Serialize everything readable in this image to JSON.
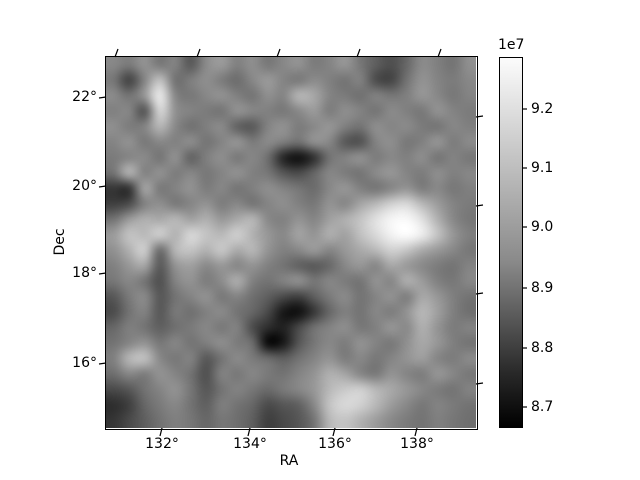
{
  "figure": {
    "background": "#ffffff",
    "text_color": "#000000"
  },
  "chart_data": {
    "type": "heatmap",
    "title": "",
    "xlabel": "RA",
    "ylabel": "Dec",
    "x_tick_labels": [
      "132°",
      "134°",
      "136°",
      "138°"
    ],
    "y_tick_labels": [
      "22°",
      "20°",
      "18°",
      "16°"
    ],
    "x_axis_range_deg": [
      130.7,
      139.4
    ],
    "y_axis_range_deg": [
      14.5,
      22.9
    ],
    "grid_on": false,
    "colorbar": {
      "exponent_label": "1e7",
      "tick_labels": [
        "9.2",
        "9.1",
        "9.0",
        "8.9",
        "8.8",
        "8.7"
      ],
      "vmin_times_1e7": 8.67,
      "vmax_times_1e7": 9.29,
      "colormap": "gray",
      "position": "right"
    },
    "values_encoding": "cell value n means pixel value (8 + n/100) x 1e7; colormap gray maps 67->black, 129->white",
    "grid": [
      [
        100,
        97,
        103,
        96,
        99,
        88,
        101,
        105,
        98,
        102,
        96,
        100,
        103,
        97,
        99,
        104,
        96,
        90,
        86,
        92,
        101,
        98,
        95,
        102
      ],
      [
        96,
        82,
        99,
        115,
        94,
        98,
        102,
        97,
        93,
        100,
        105,
        99,
        96,
        101,
        98,
        95,
        99,
        85,
        83,
        95,
        103,
        99,
        97,
        100
      ],
      [
        101,
        95,
        104,
        125,
        99,
        96,
        100,
        103,
        98,
        95,
        102,
        99,
        112,
        108,
        99,
        97,
        94,
        99,
        96,
        98,
        104,
        100,
        96,
        99
      ],
      [
        98,
        100,
        86,
        120,
        102,
        99,
        97,
        95,
        103,
        100,
        98,
        96,
        100,
        105,
        97,
        102,
        99,
        95,
        101,
        98,
        96,
        103,
        99,
        97
      ],
      [
        102,
        97,
        99,
        112,
        100,
        94,
        98,
        101,
        90,
        88,
        99,
        103,
        97,
        100,
        104,
        98,
        95,
        102,
        99,
        101,
        97,
        95,
        100,
        98
      ],
      [
        99,
        103,
        96,
        100,
        98,
        102,
        95,
        99,
        104,
        97,
        101,
        98,
        95,
        103,
        100,
        88,
        86,
        99,
        102,
        96,
        98,
        104,
        97,
        101
      ],
      [
        97,
        99,
        101,
        95,
        103,
        90,
        98,
        102,
        96,
        100,
        94,
        75,
        70,
        78,
        95,
        99,
        103,
        97,
        100,
        98,
        102,
        95,
        99,
        96
      ],
      [
        95,
        112,
        98,
        103,
        97,
        100,
        96,
        99,
        103,
        98,
        96,
        88,
        85,
        92,
        100,
        97,
        95,
        101,
        104,
        99,
        97,
        102,
        98,
        100
      ],
      [
        80,
        78,
        108,
        96,
        99,
        103,
        97,
        100,
        95,
        98,
        102,
        99,
        96,
        93,
        100,
        104,
        98,
        95,
        99,
        103,
        97,
        100,
        96,
        98
      ],
      [
        82,
        85,
        98,
        102,
        96,
        99,
        103,
        97,
        100,
        95,
        99,
        102,
        98,
        96,
        103,
        99,
        107,
        112,
        118,
        120,
        112,
        105,
        99,
        97
      ],
      [
        95,
        105,
        110,
        108,
        112,
        106,
        110,
        104,
        108,
        112,
        100,
        98,
        103,
        99,
        106,
        110,
        115,
        122,
        127,
        128,
        122,
        110,
        100,
        96
      ],
      [
        105,
        115,
        112,
        118,
        110,
        120,
        115,
        112,
        118,
        110,
        104,
        100,
        107,
        103,
        110,
        106,
        114,
        120,
        126,
        129,
        125,
        115,
        104,
        98
      ],
      [
        102,
        110,
        118,
        92,
        112,
        115,
        110,
        116,
        108,
        112,
        103,
        98,
        100,
        105,
        99,
        104,
        108,
        112,
        118,
        115,
        108,
        104,
        100,
        96
      ],
      [
        98,
        104,
        108,
        88,
        103,
        106,
        100,
        104,
        99,
        103,
        98,
        95,
        90,
        88,
        92,
        100,
        104,
        99,
        108,
        104,
        100,
        97,
        95,
        99
      ],
      [
        96,
        100,
        95,
        86,
        99,
        103,
        97,
        101,
        110,
        98,
        95,
        99,
        103,
        96,
        100,
        97,
        95,
        103,
        99,
        110,
        105,
        98,
        96,
        100
      ],
      [
        88,
        97,
        101,
        88,
        95,
        99,
        103,
        96,
        99,
        94,
        90,
        85,
        82,
        90,
        97,
        101,
        95,
        99,
        103,
        97,
        108,
        104,
        98,
        95
      ],
      [
        85,
        95,
        99,
        88,
        97,
        94,
        98,
        101,
        95,
        92,
        85,
        72,
        70,
        80,
        92,
        98,
        95,
        100,
        97,
        103,
        112,
        106,
        98,
        94
      ],
      [
        92,
        98,
        95,
        90,
        94,
        97,
        100,
        96,
        99,
        85,
        78,
        75,
        85,
        95,
        99,
        102,
        96,
        98,
        104,
        100,
        110,
        103,
        97,
        99
      ],
      [
        95,
        99,
        103,
        96,
        100,
        95,
        98,
        102,
        97,
        94,
        68,
        72,
        88,
        96,
        100,
        97,
        103,
        99,
        96,
        102,
        108,
        104,
        98,
        95
      ],
      [
        98,
        112,
        115,
        100,
        96,
        99,
        88,
        95,
        101,
        97,
        94,
        90,
        95,
        99,
        103,
        97,
        100,
        96,
        99,
        103,
        106,
        99,
        97,
        101
      ],
      [
        94,
        100,
        97,
        103,
        99,
        95,
        86,
        99,
        96,
        100,
        97,
        95,
        99,
        103,
        110,
        107,
        99,
        96,
        103,
        99,
        97,
        104,
        100,
        96
      ],
      [
        85,
        88,
        95,
        99,
        103,
        96,
        88,
        95,
        99,
        96,
        93,
        97,
        100,
        104,
        112,
        116,
        118,
        112,
        108,
        104,
        100,
        97,
        95,
        99
      ],
      [
        78,
        82,
        92,
        97,
        100,
        95,
        90,
        98,
        95,
        92,
        85,
        88,
        90,
        100,
        115,
        120,
        118,
        112,
        105,
        100,
        96,
        99,
        97,
        95
      ],
      [
        80,
        85,
        90,
        95,
        98,
        96,
        92,
        96,
        94,
        90,
        82,
        85,
        88,
        95,
        112,
        115,
        110,
        105,
        100,
        97,
        95,
        98,
        96,
        94
      ]
    ]
  }
}
